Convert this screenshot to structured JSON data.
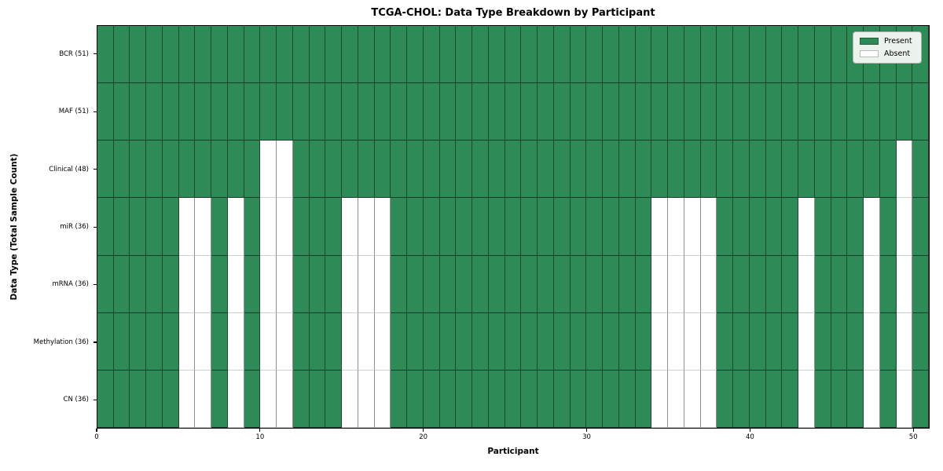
{
  "chart_data": {
    "type": "heatmap",
    "title": "TCGA-CHOL: Data Type Breakdown by Participant",
    "xlabel": "Participant",
    "ylabel": "Data Type (Total Sample Count)",
    "n_participants": 51,
    "x_range": [
      0,
      51
    ],
    "x_ticks": [
      0,
      10,
      20,
      30,
      40,
      50
    ],
    "grid": true,
    "legend_position": "upper right",
    "colors": {
      "present": "#2e8b57",
      "absent": "#ffffff"
    },
    "legend": [
      {
        "label": "Present",
        "color": "#2e8b57"
      },
      {
        "label": "Absent",
        "color": "#ffffff"
      }
    ],
    "rows": [
      {
        "label": "BCR",
        "count": 51,
        "display": "BCR (51)",
        "absent_participants": []
      },
      {
        "label": "MAF",
        "count": 51,
        "display": "MAF (51)",
        "absent_participants": []
      },
      {
        "label": "Clinical",
        "count": 48,
        "display": "Clinical (48)",
        "absent_participants": [
          10,
          11,
          49
        ]
      },
      {
        "label": "miR",
        "count": 36,
        "display": "miR (36)",
        "absent_participants": [
          5,
          6,
          8,
          10,
          11,
          15,
          16,
          17,
          34,
          35,
          36,
          37,
          43,
          47,
          49
        ]
      },
      {
        "label": "mRNA",
        "count": 36,
        "display": "mRNA (36)",
        "absent_participants": [
          5,
          6,
          8,
          10,
          11,
          15,
          16,
          17,
          34,
          35,
          36,
          37,
          43,
          47,
          49
        ]
      },
      {
        "label": "Methylation",
        "count": 36,
        "display": "Methylation (36)",
        "absent_participants": [
          5,
          6,
          8,
          10,
          11,
          15,
          16,
          17,
          34,
          35,
          36,
          37,
          43,
          47,
          49
        ]
      },
      {
        "label": "CN",
        "count": 36,
        "display": "CN (36)",
        "absent_participants": [
          5,
          6,
          8,
          10,
          11,
          15,
          16,
          17,
          34,
          35,
          36,
          37,
          43,
          47,
          49
        ]
      }
    ]
  }
}
